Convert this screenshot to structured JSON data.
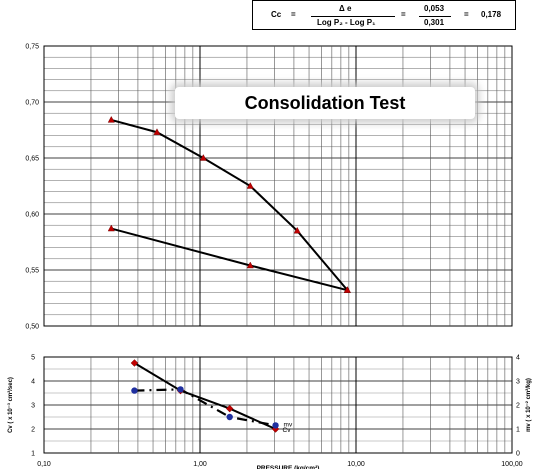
{
  "formula": {
    "lhs": "Cc",
    "eq1": "=",
    "num": "Δ e",
    "den": "Log P₂ - Log P₁",
    "eq2": "=",
    "num_val": "0,053",
    "den_val": "0,301",
    "eq3": "=",
    "result": "0,178"
  },
  "chart_data": [
    {
      "type": "line",
      "title": "Consolidation Test",
      "x_scale": "log",
      "xlim": [
        0.1,
        100
      ],
      "ylim": [
        0.5,
        0.75
      ],
      "y_ticks": [
        "0,50",
        "0,55",
        "0,60",
        "0,65",
        "0,70",
        "0,75"
      ],
      "grid": true,
      "series": [
        {
          "color": "#c00000",
          "x": [
            0.27,
            0.53,
            1.05,
            2.1,
            4.2,
            8.8
          ],
          "y": [
            0.684,
            0.673,
            0.65,
            0.625,
            0.585,
            0.532
          ]
        },
        {
          "color": "#c00000",
          "x": [
            0.27,
            2.1,
            8.8
          ],
          "y": [
            0.587,
            0.554,
            0.532
          ]
        }
      ]
    },
    {
      "type": "line",
      "x_scale": "log",
      "xlim": [
        0.1,
        100
      ],
      "xlabel": "PRESSURE (kg/cm²)",
      "x_ticks": [
        "0,10",
        "1,00",
        "10,00",
        "100,00"
      ],
      "ylabel_left": "Cv ( x 10⁻³ cm²/sec)",
      "ylabel_right": "mv ( x 10⁻² cm²/kg)",
      "ylim_left": [
        1,
        5
      ],
      "ylim_right": [
        0,
        4
      ],
      "y_ticks_left": [
        "1",
        "2",
        "3",
        "4",
        "5"
      ],
      "y_ticks_right": [
        "0",
        "1",
        "2",
        "3",
        "4"
      ],
      "grid": true,
      "series": [
        {
          "name": "Cv",
          "axis": "left",
          "color": "#c00000",
          "x": [
            0.38,
            0.75,
            1.55,
            3.05
          ],
          "y": [
            4.75,
            3.6,
            2.85,
            2.0
          ]
        },
        {
          "name": "mv",
          "axis": "right",
          "color": "#1f2f9f",
          "x": [
            0.38,
            0.75,
            1.55,
            3.05
          ],
          "y": [
            2.6,
            2.65,
            1.5,
            1.15
          ]
        }
      ]
    }
  ]
}
